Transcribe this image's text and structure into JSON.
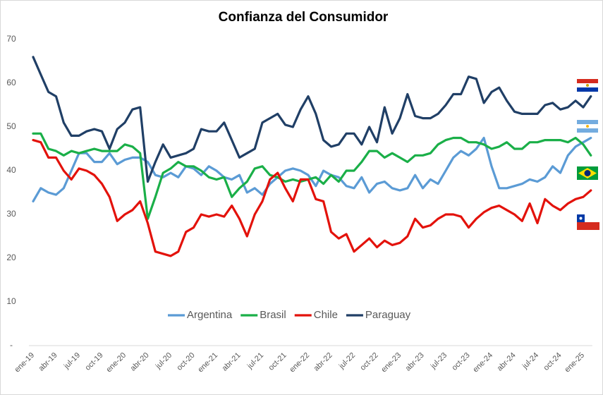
{
  "chart_data": {
    "type": "line",
    "title": "Confianza del Consumidor",
    "categories": [
      "ene-19",
      null,
      null,
      "abr-19",
      null,
      null,
      "jul-19",
      null,
      null,
      "oct-19",
      null,
      null,
      "ene-20",
      null,
      null,
      "abr-20",
      null,
      null,
      "jul-20",
      null,
      null,
      "oct-20",
      null,
      null,
      "ene-21",
      null,
      null,
      "abr-21",
      null,
      null,
      "jul-21",
      null,
      null,
      "oct-21",
      null,
      null,
      "ene-22",
      null,
      null,
      "abr-22",
      null,
      null,
      "jul-22",
      null,
      null,
      "oct-22",
      null,
      null,
      "ene-23",
      null,
      null,
      "abr-23",
      null,
      null,
      "jul-23",
      null,
      null,
      "oct-23",
      null,
      null,
      "ene-24",
      null,
      null,
      "abr-24",
      null,
      null,
      "jul-24",
      null,
      null,
      "oct-24",
      null,
      null,
      "ene-25",
      null
    ],
    "series": [
      {
        "name": "Argentina",
        "color": "#5b9bd5",
        "values": [
          33,
          36,
          35,
          34.5,
          36,
          40,
          44,
          44,
          42,
          42,
          44,
          41.5,
          42.5,
          43,
          43,
          42,
          39,
          38.5,
          39.5,
          38.5,
          41,
          40.5,
          39,
          41,
          40,
          38.5,
          38,
          39,
          35,
          36,
          34.5,
          37,
          38.5,
          40,
          40.5,
          40,
          39,
          36.5,
          40,
          39,
          38.5,
          36.5,
          36,
          38.5,
          35,
          37,
          37.5,
          36,
          35.5,
          36,
          39,
          36,
          38,
          37,
          40,
          43,
          44.5,
          43.5,
          45,
          47.5,
          41,
          36,
          36,
          36.5,
          37,
          38,
          37.5,
          38.5,
          41,
          39.5,
          43.5,
          45.5,
          46.5,
          47.5
        ]
      },
      {
        "name": "Brasil",
        "color": "#1aaf48",
        "values": [
          48.5,
          48.5,
          45,
          44.5,
          43.5,
          44.5,
          44,
          44.5,
          45,
          44.5,
          44.5,
          44.5,
          46,
          45.5,
          44,
          29,
          34,
          39.5,
          40.5,
          42,
          41,
          41,
          40,
          38.5,
          38,
          38.5,
          34,
          36,
          37.5,
          40.5,
          41,
          39,
          38.5,
          37.5,
          38,
          37.5,
          38,
          38.5,
          37,
          39,
          37.5,
          40,
          40,
          42,
          44.5,
          44.5,
          43,
          44,
          43,
          42,
          43.5,
          43.5,
          44,
          46,
          47,
          47.5,
          47.5,
          46.5,
          46.5,
          46,
          45,
          45.5,
          46.5,
          45,
          45,
          46.5,
          46.5,
          47,
          47,
          47,
          46.5,
          47.5,
          46,
          43.5
        ]
      },
      {
        "name": "Chile",
        "color": "#e3120b",
        "values": [
          47,
          46.5,
          43,
          43,
          40,
          38,
          40.5,
          40,
          39,
          37,
          34,
          28.5,
          30,
          31,
          33,
          28,
          21.5,
          21,
          20.5,
          21.5,
          26,
          27,
          30,
          29.5,
          30,
          29.5,
          32,
          29,
          25,
          30,
          33,
          38,
          39.5,
          36,
          33,
          38,
          38,
          33.5,
          33,
          26,
          24.5,
          25.5,
          21.5,
          23,
          24.5,
          22.5,
          24,
          23,
          23.5,
          25,
          29,
          27,
          27.5,
          29,
          30,
          30,
          29.5,
          27,
          29,
          30.5,
          31.5,
          32,
          31,
          30,
          28.5,
          32.5,
          28,
          33.5,
          32,
          31,
          32.5,
          33.5,
          34,
          35.5
        ]
      },
      {
        "name": "Paraguay",
        "color": "#203f66",
        "values": [
          66,
          62,
          58,
          57,
          51,
          48,
          48,
          49,
          49.5,
          49,
          45,
          49.5,
          51,
          54,
          54.5,
          37.5,
          42,
          46,
          43,
          43.5,
          44,
          45,
          49.5,
          49,
          49,
          51,
          47,
          43,
          44,
          45,
          51,
          52,
          53,
          50.5,
          50,
          54,
          57,
          53,
          47,
          45.5,
          46,
          48.5,
          48.5,
          46,
          50,
          46.5,
          54.5,
          48.5,
          52,
          57.5,
          52.5,
          52,
          52,
          53,
          55,
          57.5,
          57.5,
          61.5,
          61,
          55.5,
          58,
          59,
          56,
          53.5,
          53,
          53,
          53,
          55,
          55.5,
          54,
          54.5,
          56,
          54.5,
          57
        ]
      }
    ],
    "ylim": [
      0,
      70
    ],
    "yticks": [
      {
        "value": 0,
        "label": "-"
      },
      10,
      20,
      30,
      40,
      50,
      60,
      70
    ]
  }
}
